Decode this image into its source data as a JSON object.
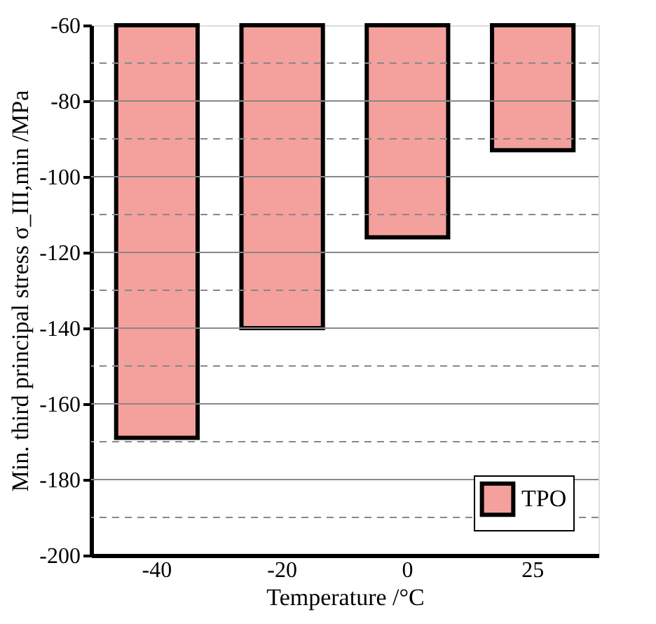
{
  "chart_data": {
    "type": "bar",
    "xlabel": "Temperature /°C",
    "ylabel": "Min. third principal stress σ_III,min /MPa",
    "categories": [
      "-40",
      "-20",
      "0",
      "25"
    ],
    "series": [
      {
        "name": "TPO",
        "color": "#f4a09c",
        "values": [
          -169,
          -140,
          -116,
          -93
        ]
      }
    ],
    "ylim": [
      -200,
      -60
    ],
    "yticks": [
      -200,
      {
        "value": -190,
        "label": null
      },
      -180,
      {
        "value": -170,
        "label": null
      },
      -160,
      {
        "value": -150,
        "label": null
      },
      -140,
      {
        "value": -130,
        "label": null
      },
      -120,
      {
        "value": -110,
        "label": null
      },
      -100,
      {
        "value": -90,
        "label": null
      },
      -80,
      {
        "value": -70,
        "label": null
      },
      -60
    ],
    "grid": true,
    "legend": "bottom right"
  }
}
